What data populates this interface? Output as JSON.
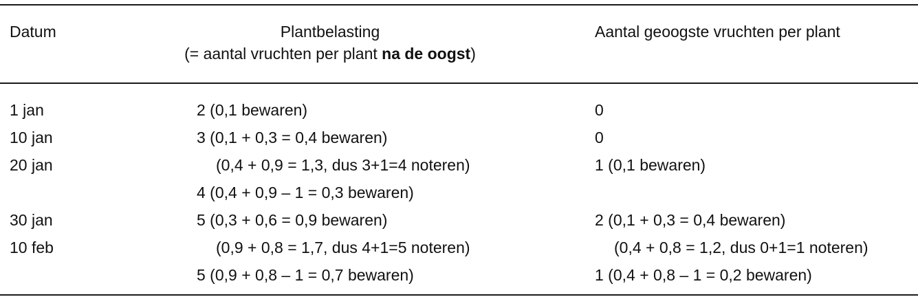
{
  "header": {
    "col1": "Datum",
    "col2_line1": "Plantbelasting",
    "col2_line2_pre": "(= aantal vruchten per plant ",
    "col2_line2_bold": "na de oogst",
    "col2_line2_post": ")",
    "col3": "Aantal geoogste vruchten per plant"
  },
  "rows": [
    {
      "date": "1 jan",
      "load": "2 (0,1 bewaren)",
      "harvest": "0"
    },
    {
      "date": "10 jan",
      "load": "3 (0,1 + 0,3 = 0,4 bewaren)",
      "harvest": "0"
    },
    {
      "date": "20 jan",
      "load": "(0,4 + 0,9 = 1,3, dus 3+1=4 noteren)",
      "harvest": "1 (0,1 bewaren)"
    },
    {
      "date": "",
      "load": "4 (0,4 + 0,9 – 1 = 0,3 bewaren)",
      "harvest": ""
    },
    {
      "date": "30 jan",
      "load": "5 (0,3 + 0,6 = 0,9 bewaren)",
      "harvest": "2 (0,1 + 0,3 = 0,4 bewaren)"
    },
    {
      "date": "10 feb",
      "load": "(0,9 + 0,8 = 1,7, dus 4+1=5 noteren)",
      "harvest": "(0,4 + 0,8 = 1,2, dus 0+1=1 noteren)"
    },
    {
      "date": "",
      "load": "5 (0,9 + 0,8 – 1 = 0,7 bewaren)",
      "harvest": "1 (0,4 + 0,8 – 1 = 0,2 bewaren)"
    }
  ]
}
